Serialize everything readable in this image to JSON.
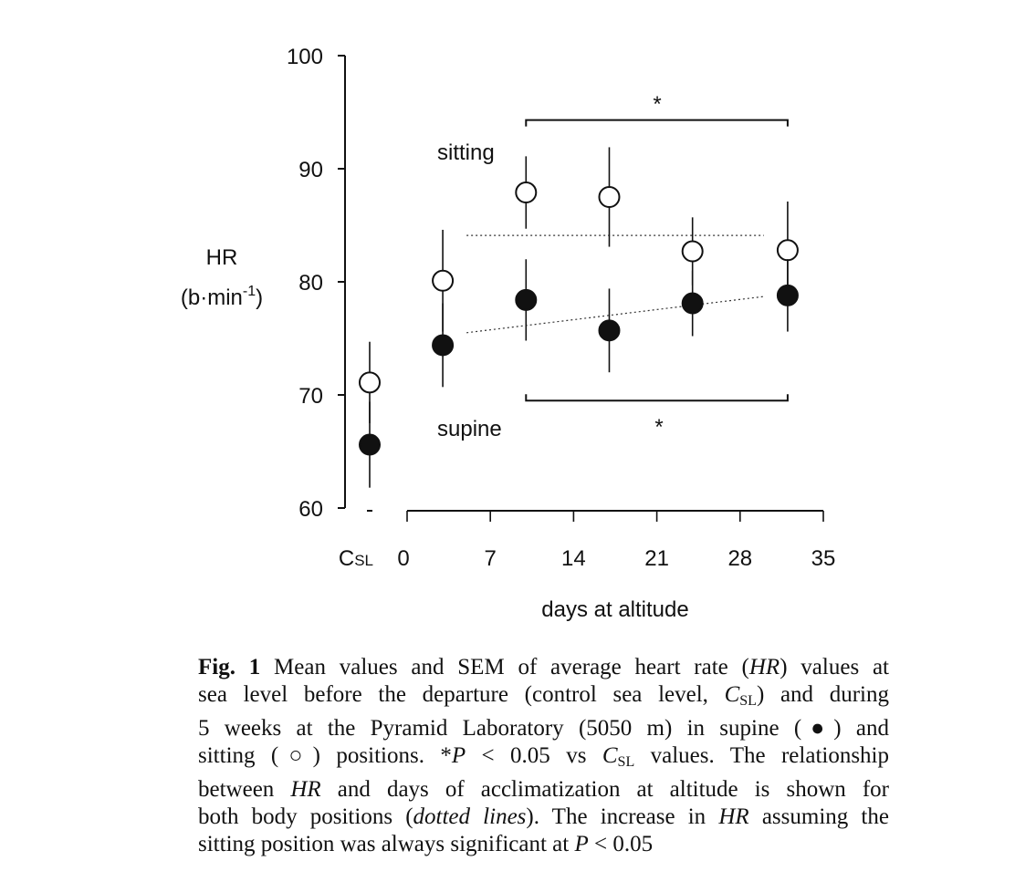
{
  "chart_data": {
    "type": "scatter",
    "title": "",
    "ylabel": "HR",
    "ylabel_unit": "(b·min",
    "ylabel_unit_sup": "-1",
    "ylabel_unit_close": ")",
    "xlabel": "days at altitude",
    "ylim": [
      60,
      100
    ],
    "yticks": [
      60,
      70,
      80,
      90,
      100
    ],
    "xlim": [
      0,
      35
    ],
    "xticks": [
      0,
      7,
      14,
      21,
      28,
      35
    ],
    "control_label_main": "C",
    "control_label_sub": "SL",
    "x": [
      3,
      10,
      17,
      24,
      32
    ],
    "series": [
      {
        "name": "sitting",
        "marker": "open-circle",
        "control": {
          "mean": 71.1,
          "sem": 3.6
        },
        "means": [
          80.1,
          87.9,
          87.5,
          82.7,
          82.8
        ],
        "sem": [
          4.5,
          3.2,
          4.4,
          3.0,
          4.3
        ],
        "trend": {
          "x": [
            5,
            30
          ],
          "y": [
            84.1,
            84.1
          ]
        }
      },
      {
        "name": "supine",
        "marker": "filled-circle",
        "control": {
          "mean": 65.6,
          "sem": 3.8
        },
        "means": [
          74.4,
          78.4,
          75.7,
          78.1,
          78.8
        ],
        "sem": [
          3.7,
          3.6,
          3.7,
          2.9,
          3.2
        ],
        "trend": {
          "x": [
            5,
            30
          ],
          "y": [
            75.5,
            78.7
          ]
        }
      }
    ],
    "annotations": [
      {
        "text": "*",
        "series": "sitting",
        "x_range": [
          10,
          32
        ],
        "y": 94.3
      },
      {
        "text": "*",
        "series": "supine",
        "x_range": [
          10,
          32
        ],
        "y": 69.5
      }
    ],
    "grid": false
  },
  "caption": {
    "lines": [
      [
        {
          "t": "Fig. 1",
          "s": "b"
        },
        {
          "t": " Mean values and SEM of average heart rate ("
        },
        {
          "t": "HR",
          "s": "i"
        },
        {
          "t": ") values at"
        }
      ],
      [
        {
          "t": "sea level before the departure (control sea level, "
        },
        {
          "t": "C",
          "s": "i"
        },
        {
          "t": "SL",
          "s": "sub"
        },
        {
          "t": ") and during"
        }
      ],
      [
        {
          "t": "5 weeks at the Pyramid Laboratory (5050 m) in supine (●) and"
        }
      ],
      [
        {
          "t": "sitting (○) positions. *"
        },
        {
          "t": "P",
          "s": "i"
        },
        {
          "t": " < 0.05 vs "
        },
        {
          "t": "C",
          "s": "i"
        },
        {
          "t": "SL",
          "s": "sub"
        },
        {
          "t": " values. The relationship"
        }
      ],
      [
        {
          "t": "between "
        },
        {
          "t": "HR",
          "s": "i"
        },
        {
          "t": " and days of acclimatization at altitude is shown for"
        }
      ],
      [
        {
          "t": "both body positions ("
        },
        {
          "t": "dotted lines",
          "s": "i"
        },
        {
          "t": "). The increase in "
        },
        {
          "t": "HR",
          "s": "i"
        },
        {
          "t": " assuming the"
        }
      ],
      [
        {
          "t": "sitting position was always significant at "
        },
        {
          "t": "P",
          "s": "i"
        },
        {
          "t": " < 0.05"
        }
      ]
    ]
  }
}
